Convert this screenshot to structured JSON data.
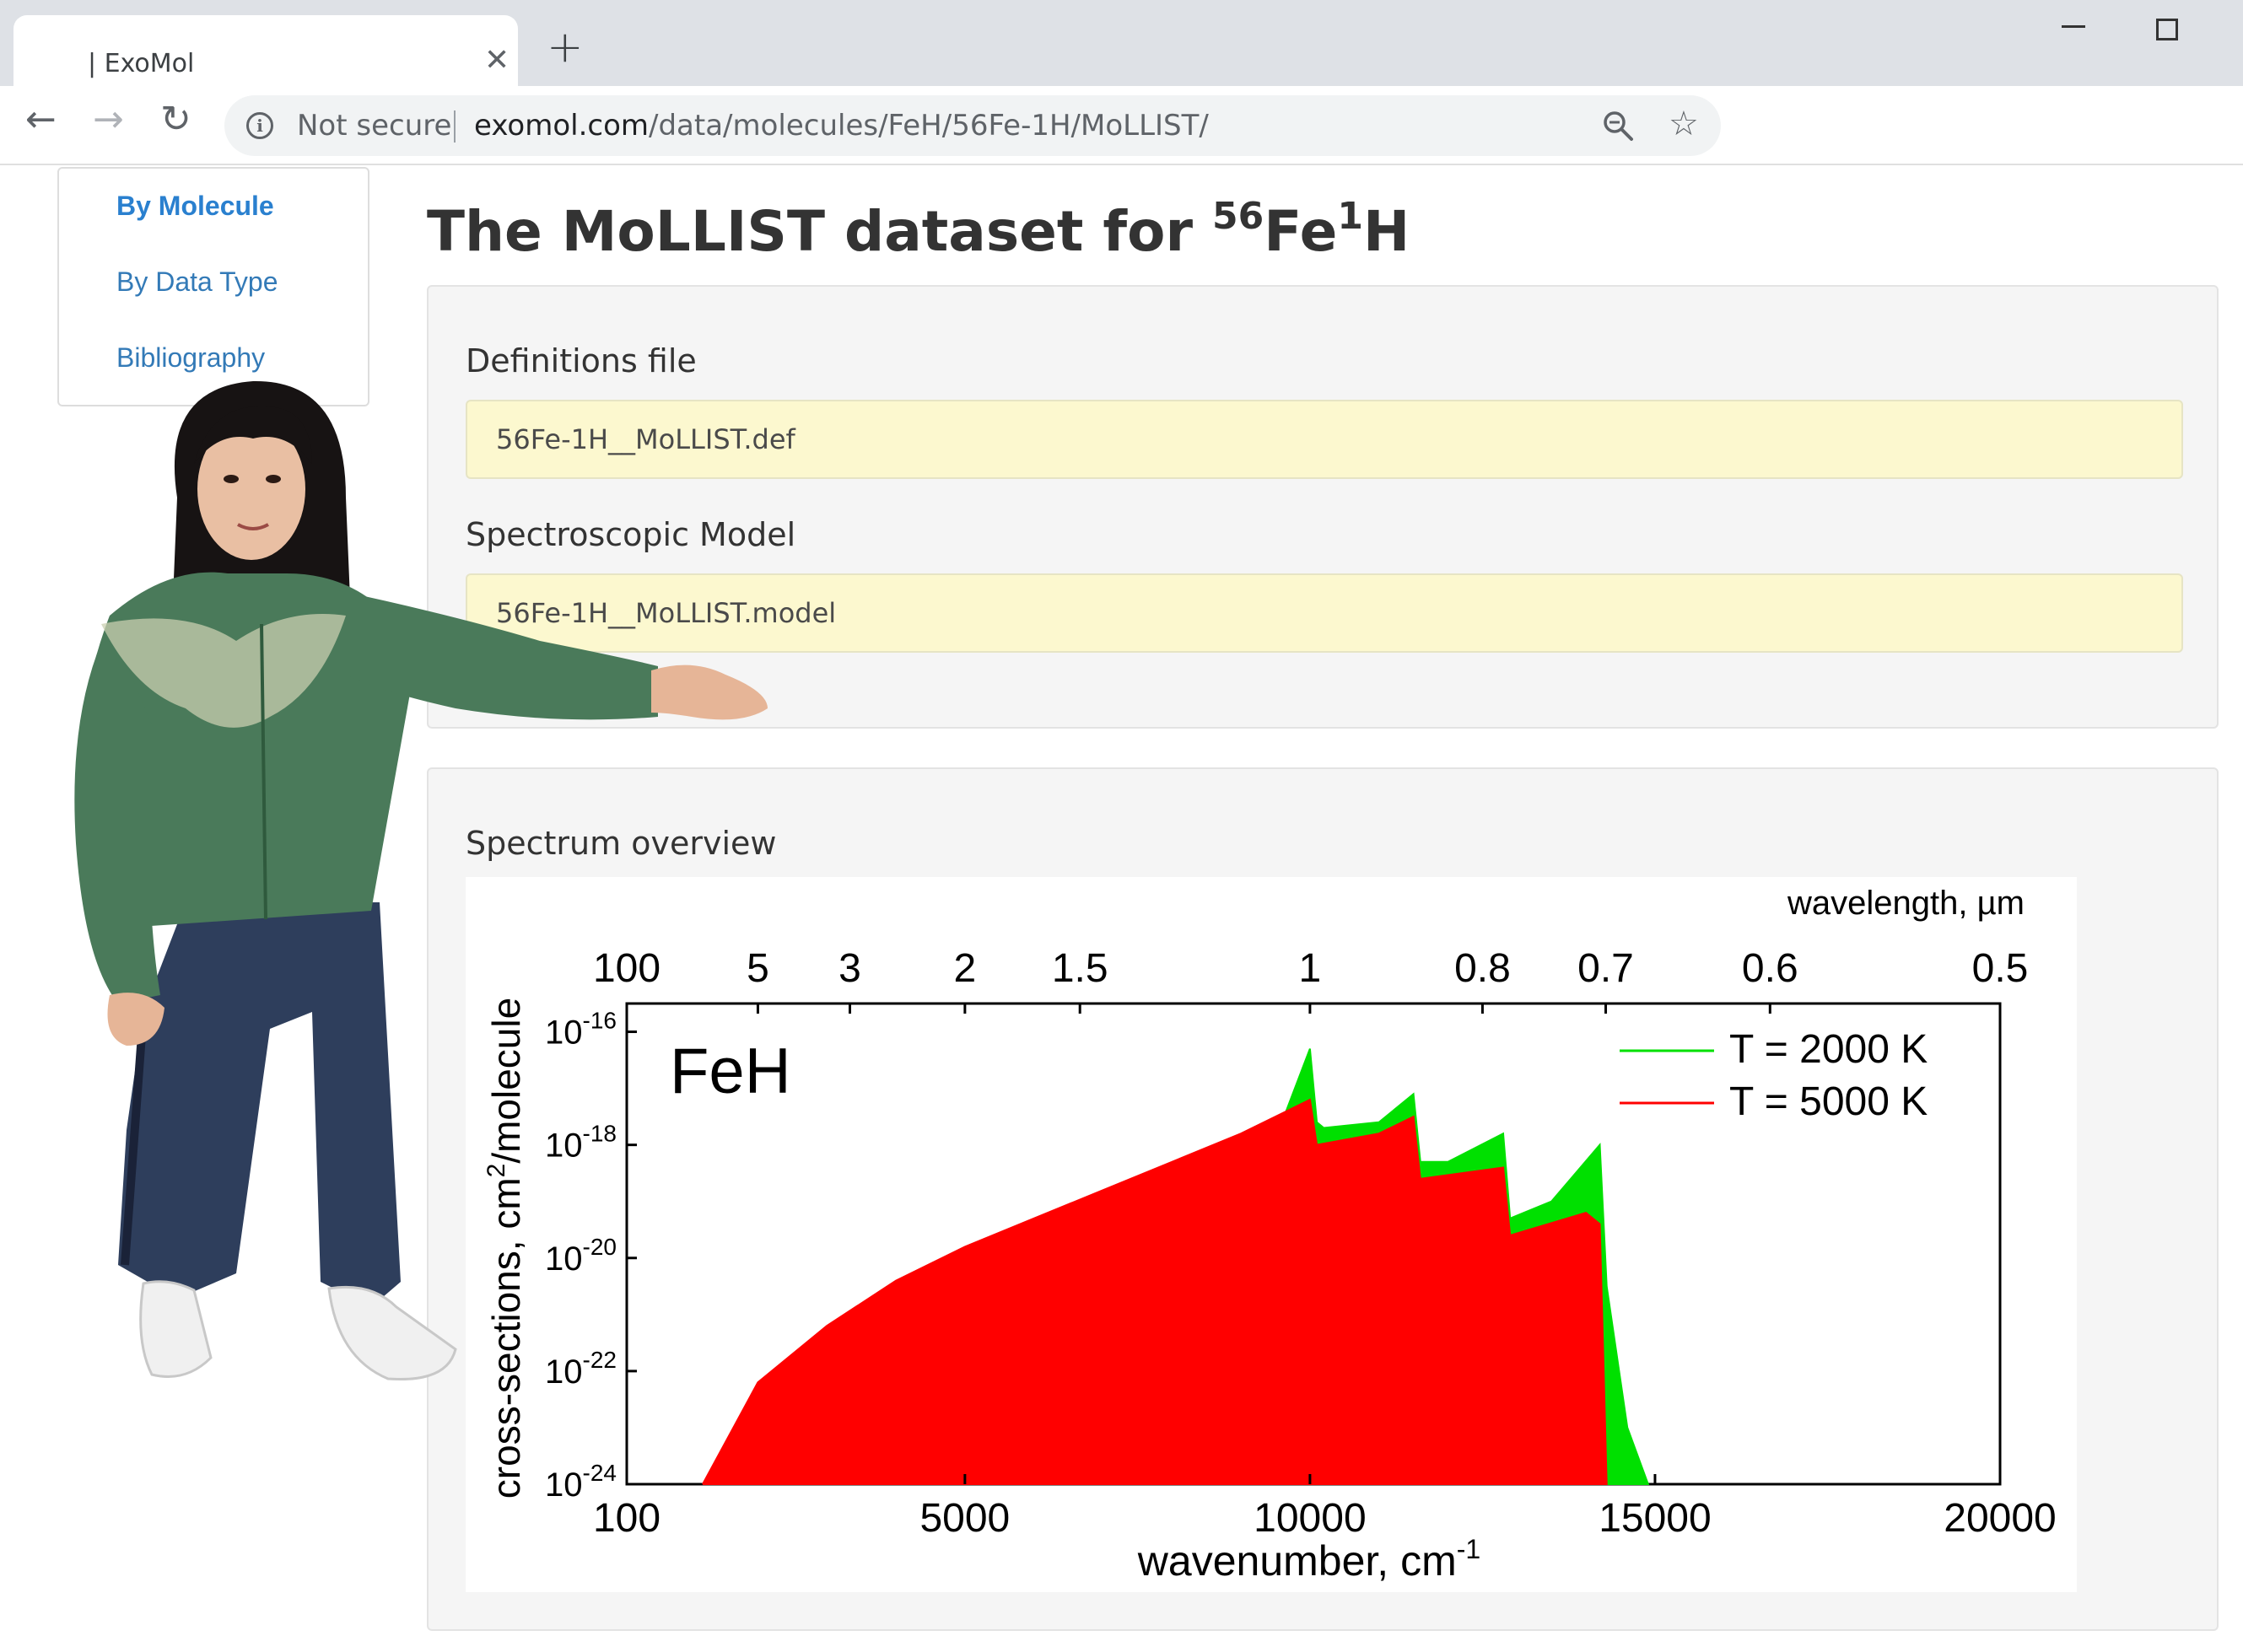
{
  "browser": {
    "tab_title": "| ExoMol",
    "tab_close": "✕",
    "new_tab": "+",
    "back": "←",
    "forward": "→",
    "reload": "↻",
    "security_label": "Not secure",
    "url_host": "exomol.com",
    "url_path": "/data/molecules/FeH/56Fe-1H/MoLLIST/",
    "star": "☆",
    "info": "i"
  },
  "sidebar": {
    "items": [
      {
        "label": "By Molecule",
        "active": true
      },
      {
        "label": "By Data Type",
        "active": false
      },
      {
        "label": "Bibliography",
        "active": false
      }
    ]
  },
  "page": {
    "title_prefix": "The MoLLIST dataset for ",
    "iso1_mass": "56",
    "iso1_symbol": "Fe",
    "iso2_mass": "1",
    "iso2_symbol": "H"
  },
  "files": {
    "definitions_label": "Definitions file",
    "definitions_file": "56Fe-1H__MoLLIST.def",
    "model_label": "Spectroscopic Model",
    "model_file": "56Fe-1H__MoLLIST.model"
  },
  "spectrum": {
    "label": "Spectrum overview"
  },
  "colors": {
    "link": "#337ab7",
    "file_box": "#fcf8cf",
    "series_2000K": "#00e000",
    "series_5000K": "#ff0000"
  },
  "chart_data": {
    "type": "line",
    "molecule_label": "FeH",
    "xlabel": "wavenumber, cm",
    "xlabel_sup": "-1",
    "x2label": "wavelength, µm",
    "ylabel": "cross-sections, cm",
    "ylabel_sup": "2",
    "ylabel_suffix": "/molecule",
    "xlim": [
      100,
      20000
    ],
    "ylim_log10": [
      -24,
      -15.5
    ],
    "y_scale": "log",
    "x_ticks": [
      "100",
      "5000",
      "10000",
      "15000",
      "20000"
    ],
    "x_tick_values": [
      100,
      5000,
      10000,
      15000,
      20000
    ],
    "x2_ticks": [
      "100",
      "5",
      "3",
      "2",
      "1.5",
      "1",
      "0.8",
      "0.7",
      "0.6",
      "0.5"
    ],
    "x2_tick_um": [
      100,
      5,
      3,
      2,
      1.5,
      1,
      0.8,
      0.7,
      0.6,
      0.5
    ],
    "y_ticks_exp": [
      "-16",
      "-18",
      "-20",
      "-22",
      "-24"
    ],
    "y_tick_base": "10",
    "legend_position": "top-right",
    "series": [
      {
        "name": "T = 2000 K",
        "color": "#00e000",
        "x": [
          4300,
          5000,
          6000,
          7000,
          8000,
          9000,
          10000,
          10100,
          10200,
          11000,
          11500,
          11600,
          12000,
          12800,
          12900,
          13500,
          14200,
          14300,
          14600,
          14900
        ],
        "y_log10": [
          -24,
          -22.8,
          -22,
          -20.8,
          -19.9,
          -19.5,
          -16.3,
          -17.6,
          -17.7,
          -17.6,
          -17.1,
          -18.3,
          -18.3,
          -17.8,
          -19.3,
          -19.0,
          -18.0,
          -20.5,
          -23.0,
          -24.0
        ]
      },
      {
        "name": "T = 5000 K",
        "color": "#ff0000",
        "x": [
          1200,
          2000,
          3000,
          4000,
          5000,
          6000,
          7000,
          8000,
          9000,
          10000,
          10100,
          11000,
          11500,
          11600,
          12800,
          12900,
          14000,
          14200,
          14300
        ],
        "y_log10": [
          -24,
          -22.2,
          -21.2,
          -20.4,
          -19.8,
          -19.3,
          -18.8,
          -18.3,
          -17.8,
          -17.2,
          -18.0,
          -17.8,
          -17.5,
          -18.6,
          -18.4,
          -19.6,
          -19.2,
          -19.4,
          -24.0
        ]
      }
    ]
  }
}
